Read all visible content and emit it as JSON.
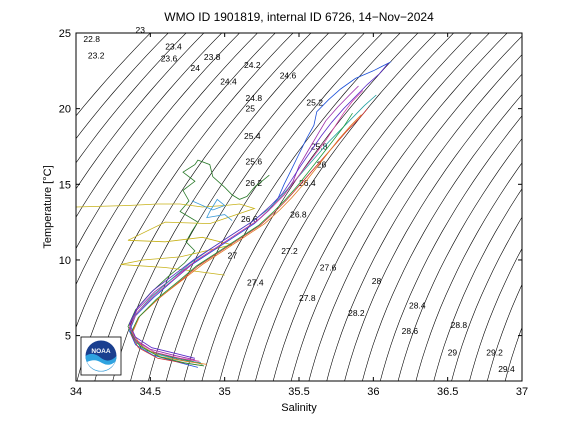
{
  "chart_data": {
    "type": "line",
    "title": "WMO ID 1901819, internal ID 6726, 14−Nov−2024",
    "xlabel": "Salinity",
    "ylabel": "Temperature [°C]",
    "xlim": [
      34,
      37
    ],
    "ylim": [
      2,
      25
    ],
    "xticks": [
      "34",
      "34.5",
      "35",
      "35.5",
      "36",
      "36.5",
      "37"
    ],
    "yticks": [
      "5",
      "10",
      "15",
      "20",
      "25"
    ],
    "grid": false,
    "logo": "noaa-logo",
    "density_labels": [
      {
        "text": "22.8",
        "s": 34.05,
        "t": 24.4
      },
      {
        "text": "23",
        "s": 34.4,
        "t": 25.0
      },
      {
        "text": "23.2",
        "s": 34.08,
        "t": 23.3
      },
      {
        "text": "23.4",
        "s": 34.6,
        "t": 23.9
      },
      {
        "text": "23.6",
        "s": 34.57,
        "t": 23.1
      },
      {
        "text": "23.8",
        "s": 34.86,
        "t": 23.2
      },
      {
        "text": "24",
        "s": 34.77,
        "t": 22.5
      },
      {
        "text": "24.2",
        "s": 35.13,
        "t": 22.7
      },
      {
        "text": "24.4",
        "s": 34.97,
        "t": 21.6
      },
      {
        "text": "24.6",
        "s": 35.37,
        "t": 22.0
      },
      {
        "text": "24.8",
        "s": 35.14,
        "t": 20.5
      },
      {
        "text": "25",
        "s": 35.14,
        "t": 19.8
      },
      {
        "text": "25.2",
        "s": 35.55,
        "t": 20.2
      },
      {
        "text": "25.4",
        "s": 35.13,
        "t": 18.0
      },
      {
        "text": "25.6",
        "s": 35.14,
        "t": 16.3
      },
      {
        "text": "25.8",
        "s": 35.58,
        "t": 17.3
      },
      {
        "text": "26",
        "s": 35.62,
        "t": 16.1
      },
      {
        "text": "26.2",
        "s": 35.14,
        "t": 14.9
      },
      {
        "text": "26.4",
        "s": 35.5,
        "t": 14.9
      },
      {
        "text": "26.6",
        "s": 35.11,
        "t": 12.5
      },
      {
        "text": "26.8",
        "s": 35.44,
        "t": 12.8
      },
      {
        "text": "27",
        "s": 35.02,
        "t": 10.1
      },
      {
        "text": "27.2",
        "s": 35.38,
        "t": 10.4
      },
      {
        "text": "27.4",
        "s": 35.15,
        "t": 8.3
      },
      {
        "text": "27.6",
        "s": 35.64,
        "t": 9.3
      },
      {
        "text": "27.8",
        "s": 35.5,
        "t": 7.3
      },
      {
        "text": "28",
        "s": 35.99,
        "t": 8.4
      },
      {
        "text": "28.2",
        "s": 35.83,
        "t": 6.3
      },
      {
        "text": "28.4",
        "s": 36.24,
        "t": 6.8
      },
      {
        "text": "28.6",
        "s": 36.19,
        "t": 5.1
      },
      {
        "text": "28.8",
        "s": 36.52,
        "t": 5.5
      },
      {
        "text": "29",
        "s": 36.5,
        "t": 3.7
      },
      {
        "text": "29.2",
        "s": 36.76,
        "t": 3.7
      },
      {
        "text": "29.4",
        "s": 36.84,
        "t": 2.6
      }
    ],
    "series": [
      {
        "color": "#2a7a2a",
        "s": [
          34.85,
          34.78,
          34.64,
          34.48,
          34.39,
          34.35,
          34.4,
          34.5,
          34.62,
          34.73,
          34.8,
          34.74,
          34.78,
          34.82,
          34.7,
          34.76,
          34.72,
          34.8,
          34.72,
          34.8,
          34.82,
          34.9,
          34.92,
          35.0,
          35.05,
          35.1,
          35.15,
          35.2,
          35.3
        ],
        "t": [
          3.1,
          3.3,
          3.6,
          4.0,
          4.8,
          5.6,
          6.7,
          7.8,
          8.9,
          9.8,
          10.6,
          11.2,
          11.9,
          12.5,
          13.2,
          13.9,
          14.6,
          15.2,
          15.8,
          16.3,
          16.6,
          16.3,
          15.5,
          14.8,
          14.3,
          14.0,
          14.2,
          14.8,
          15.6
        ]
      },
      {
        "color": "#c7b21a",
        "s": [
          34.0,
          34.35,
          34.55,
          34.7,
          34.85,
          35.0,
          35.1,
          35.2,
          34.9,
          34.6,
          34.35,
          34.6,
          34.85,
          35.05,
          34.7,
          34.45,
          34.3,
          34.6,
          34.85,
          35.0
        ],
        "t": [
          13.5,
          13.6,
          13.7,
          13.7,
          13.5,
          13.6,
          13.7,
          13.4,
          12.4,
          12.5,
          11.3,
          11.2,
          11.5,
          11.0,
          10.2,
          10.0,
          9.7,
          9.5,
          9.2,
          9.0
        ]
      },
      {
        "color": "#3a9ad8",
        "s": [
          34.78,
          34.92,
          35.0,
          34.95,
          34.9,
          34.88,
          35.0,
          35.05
        ],
        "t": [
          13.9,
          13.3,
          13.6,
          14.0,
          13.2,
          12.8,
          13.0,
          12.6
        ]
      },
      {
        "color": "#1a4fd8",
        "s": [
          34.82,
          34.7,
          34.52,
          34.4,
          34.36,
          34.4,
          34.52,
          34.66,
          34.78,
          34.92,
          35.06,
          35.2,
          35.3,
          35.36,
          35.4,
          35.45,
          35.5,
          35.55,
          35.6,
          35.62,
          35.7,
          35.78,
          35.88,
          36.0,
          36.12
        ],
        "t": [
          2.9,
          3.2,
          3.7,
          4.4,
          5.3,
          6.3,
          7.5,
          8.7,
          9.7,
          10.6,
          11.5,
          12.4,
          13.3,
          14.1,
          15.0,
          16.0,
          17.0,
          18.0,
          18.9,
          19.8,
          20.6,
          21.3,
          22.0,
          22.5,
          23.1
        ]
      },
      {
        "color": "#cc3030",
        "s": [
          34.86,
          34.72,
          34.55,
          34.42,
          34.37,
          34.42,
          34.55,
          34.7,
          34.82,
          34.96,
          35.1,
          35.24,
          35.34,
          35.42,
          35.5,
          35.58,
          35.66,
          35.74,
          35.82,
          35.9,
          35.96
        ],
        "t": [
          3.0,
          3.2,
          3.5,
          4.2,
          5.1,
          6.2,
          7.4,
          8.6,
          9.6,
          10.5,
          11.4,
          12.3,
          13.2,
          14.0,
          14.9,
          15.8,
          16.7,
          17.6,
          18.5,
          19.3,
          20.0
        ]
      },
      {
        "color": "#9a2aa8",
        "s": [
          34.8,
          34.66,
          34.5,
          34.39,
          34.36,
          34.41,
          34.53,
          34.68,
          34.8,
          34.94,
          35.08,
          35.22,
          35.32,
          35.4,
          35.46,
          35.5,
          35.56,
          35.62,
          35.68,
          35.76,
          35.84,
          35.9
        ],
        "t": [
          3.4,
          3.7,
          4.1,
          4.8,
          5.7,
          6.7,
          7.9,
          9.0,
          9.9,
          10.8,
          11.7,
          12.6,
          13.5,
          14.3,
          15.2,
          16.2,
          17.2,
          18.2,
          19.2,
          20.1,
          20.9,
          21.5
        ]
      },
      {
        "color": "#22a0a0",
        "s": [
          34.84,
          34.7,
          34.53,
          34.41,
          34.36,
          34.4,
          34.51,
          34.65,
          34.77,
          34.9,
          35.04,
          35.18,
          35.3,
          35.38,
          35.46,
          35.54,
          35.62,
          35.7,
          35.78,
          35.86,
          35.94,
          36.02
        ],
        "t": [
          3.2,
          3.4,
          3.8,
          4.5,
          5.4,
          6.4,
          7.6,
          8.8,
          9.8,
          10.7,
          11.6,
          12.5,
          13.4,
          14.2,
          15.1,
          16.0,
          16.9,
          17.8,
          18.6,
          19.4,
          20.2,
          20.9
        ]
      },
      {
        "color": "#e07a20",
        "s": [
          34.88,
          34.74,
          34.57,
          34.44,
          34.38,
          34.43,
          34.56,
          34.72,
          34.85,
          34.99,
          35.13,
          35.27,
          35.37,
          35.45,
          35.53,
          35.61,
          35.69,
          35.77,
          35.85,
          35.92
        ],
        "t": [
          3.1,
          3.3,
          3.6,
          4.3,
          5.2,
          6.3,
          7.5,
          8.7,
          9.7,
          10.6,
          11.5,
          12.4,
          13.3,
          14.1,
          15.0,
          16.0,
          17.0,
          18.0,
          18.9,
          19.6
        ]
      },
      {
        "color": "#5a2ac8",
        "s": [
          34.8,
          34.68,
          34.51,
          34.4,
          34.36,
          34.41,
          34.52,
          34.67,
          34.79,
          34.93,
          35.07,
          35.21,
          35.31,
          35.39,
          35.45,
          35.51,
          35.58,
          35.65,
          35.72,
          35.8,
          35.88,
          35.96,
          36.04,
          36.1
        ],
        "t": [
          3.5,
          3.8,
          4.2,
          4.9,
          5.8,
          6.8,
          8.0,
          9.1,
          10.0,
          10.9,
          11.8,
          12.7,
          13.6,
          14.4,
          15.3,
          16.2,
          17.2,
          18.2,
          19.1,
          20.0,
          20.8,
          21.6,
          22.3,
          23.0
        ]
      },
      {
        "color": "#1a9a3a",
        "s": [
          34.86,
          34.73,
          34.56,
          34.43,
          34.37,
          34.42,
          34.54,
          34.69,
          34.81,
          34.95,
          35.09,
          35.23,
          35.33,
          35.41,
          35.49,
          35.57,
          35.65,
          35.73,
          35.8,
          35.86
        ],
        "t": [
          3.0,
          3.2,
          3.6,
          4.3,
          5.2,
          6.2,
          7.4,
          8.6,
          9.6,
          10.5,
          11.4,
          12.3,
          13.2,
          14.0,
          14.9,
          15.9,
          16.9,
          17.9,
          18.8,
          19.7
        ]
      },
      {
        "color": "#d03aa0",
        "s": [
          34.83,
          34.7,
          34.53,
          34.41,
          34.36,
          34.41,
          34.53,
          34.68,
          34.8,
          34.94,
          35.08,
          35.22,
          35.32,
          35.4,
          35.47,
          35.54,
          35.61,
          35.68,
          35.74,
          35.8,
          35.86,
          35.93
        ],
        "t": [
          3.3,
          3.5,
          3.9,
          4.6,
          5.5,
          6.5,
          7.7,
          8.9,
          9.9,
          10.8,
          11.7,
          12.6,
          13.5,
          14.3,
          15.2,
          16.1,
          17.0,
          17.9,
          18.8,
          19.7,
          20.5,
          21.2
        ]
      }
    ]
  }
}
